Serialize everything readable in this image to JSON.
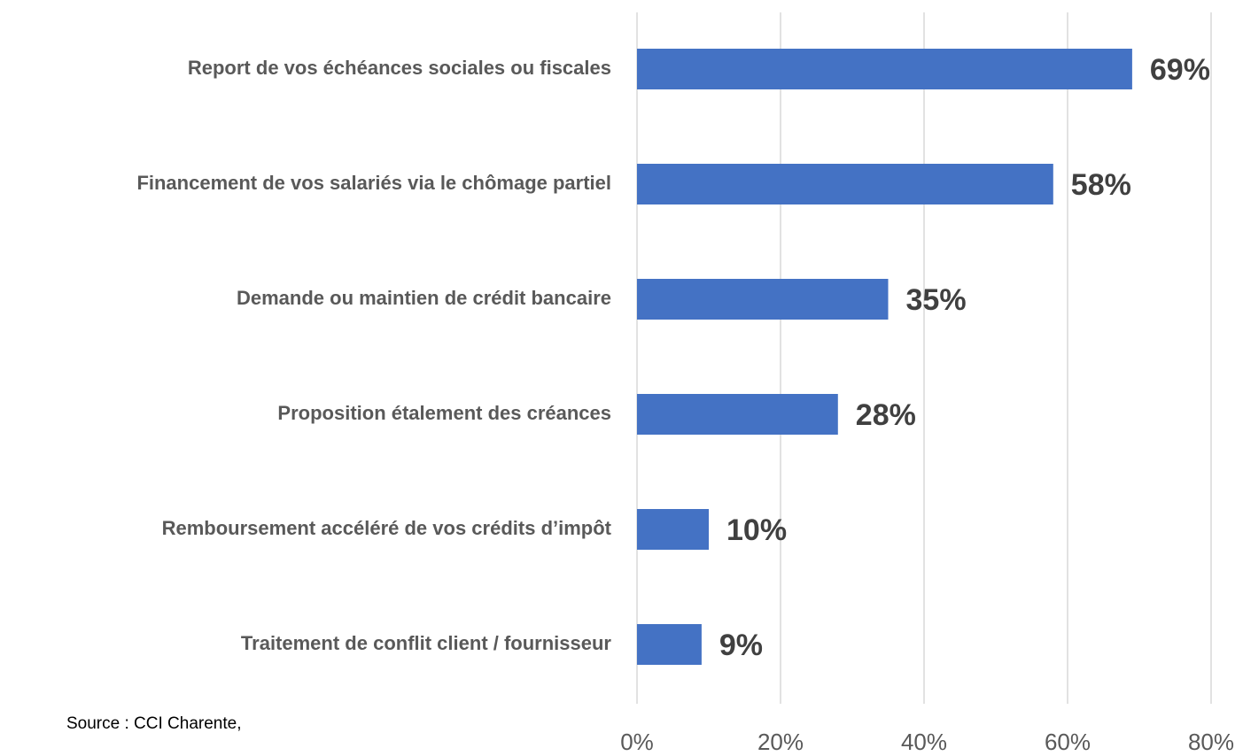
{
  "chart_data": {
    "type": "bar",
    "orientation": "horizontal",
    "categories": [
      "Report de vos échéances sociales ou fiscales",
      "Financement de vos salariés via le chômage partiel",
      "Demande ou maintien de crédit bancaire",
      "Proposition étalement des créances",
      "Remboursement accéléré de vos crédits d’impôt",
      "Traitement de conflit client / fournisseur"
    ],
    "values": [
      69,
      58,
      35,
      28,
      10,
      9
    ],
    "value_labels": [
      "69%",
      "58%",
      "35%",
      "28%",
      "10%",
      "9%"
    ],
    "color": "#4472c4",
    "xlim": [
      0,
      80
    ],
    "xticks": [
      {
        "value": 0,
        "label": "0%"
      },
      {
        "value": 20,
        "label": "20%"
      },
      {
        "value": 40,
        "label": "40%"
      },
      {
        "value": 60,
        "label": "60%"
      },
      {
        "value": 80,
        "label": "80%"
      }
    ],
    "grid": true,
    "annotation": "Source : CCI Charente,"
  }
}
